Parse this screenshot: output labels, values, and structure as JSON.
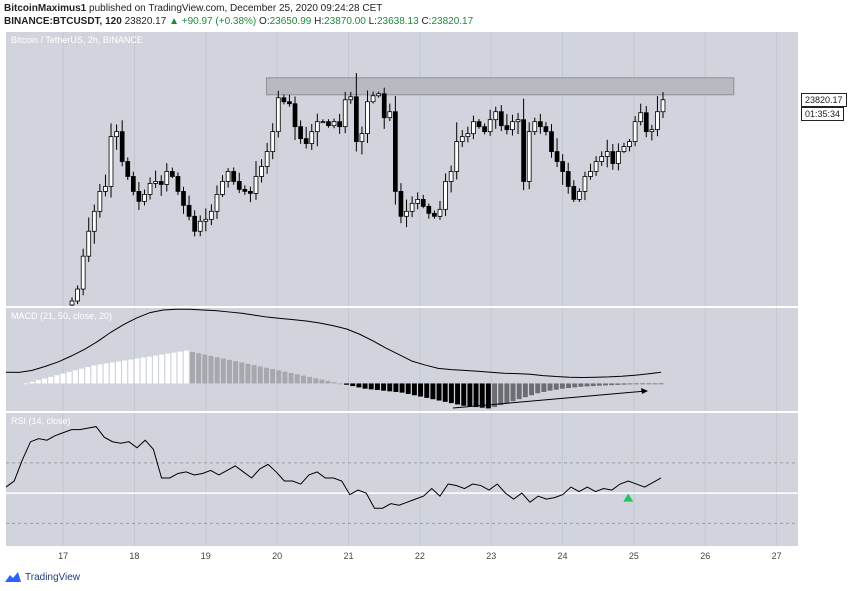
{
  "header": {
    "author": "BitcoinMaximus1",
    "published": "published on TradingView.com, December 25, 2020 09:24:28 CET",
    "symbol": "BINANCE:BTCUSDT, 120",
    "last": "23820.17",
    "change": "▲ +90.97 (+0.38%)",
    "o_label": "O:",
    "o_val": "23650.99",
    "h_label": "H:",
    "h_val": "23870.00",
    "l_label": "L:",
    "l_val": "23638.13",
    "c_label": "C:",
    "c_val": "23820.17"
  },
  "price_pane": {
    "label": "Bitcoin / TetherUS, 2h, BINANCE",
    "currency": "USDT",
    "price_tag": "23820.17",
    "timer_tag": "01:35:34"
  },
  "macd_pane": {
    "label": "MACD (21, 50, close, 20)"
  },
  "rsi_pane": {
    "label": "RSI (14, close)"
  },
  "branding": {
    "name": "TradingView"
  },
  "colors": {
    "pane_bg": "#d1d4dc",
    "candle_up": "#ffffff",
    "candle_down": "#000000",
    "rsi_signal": "#22c55e"
  },
  "chart_data": [
    {
      "type": "candlestick",
      "title": "Bitcoin / TetherUS, 2h, BINANCE",
      "x_ticks": [
        "17",
        "18",
        "19",
        "20",
        "21",
        "22",
        "23",
        "24",
        "25",
        "26",
        "27"
      ],
      "ylim": [
        21750,
        24500
      ],
      "y_ticks": [
        22000,
        22250,
        22500,
        22750,
        23000,
        23250,
        23500,
        23750,
        24000,
        24250
      ],
      "x_range": [
        16.2,
        27.3
      ],
      "resistance_zone": {
        "x": [
          19.85,
          26.4
        ],
        "y": [
          23870,
          24040
        ]
      },
      "close": [
        21800,
        21920,
        22250,
        22500,
        22700,
        22900,
        22950,
        23450,
        23500,
        23200,
        23050,
        22900,
        22800,
        22870,
        22980,
        23000,
        22970,
        23100,
        23050,
        22900,
        22760,
        22650,
        22500,
        22600,
        22620,
        22700,
        22870,
        23000,
        23100,
        23000,
        22920,
        22900,
        22880,
        23050,
        23150,
        23300,
        23500,
        23840,
        23800,
        23780,
        23550,
        23430,
        23380,
        23500,
        23600,
        23600,
        23560,
        23600,
        23550,
        23820,
        23850,
        23400,
        23480,
        23800,
        23860,
        23880,
        23640,
        23700,
        22900,
        22650,
        22700,
        22780,
        22820,
        22750,
        22680,
        22650,
        22720,
        23000,
        23100,
        23400,
        23450,
        23480,
        23600,
        23550,
        23500,
        23620,
        23700,
        23560,
        23520,
        23600,
        23620,
        23000,
        23500,
        23600,
        23550,
        23500,
        23300,
        23200,
        23100,
        22950,
        22820,
        22900,
        23050,
        23100,
        23200,
        23250,
        23300,
        23180,
        23300,
        23350,
        23400,
        23600,
        23690,
        23500,
        23520,
        23700,
        23820
      ]
    },
    {
      "type": "bar",
      "title": "MACD (21, 50, close, 20)",
      "ylim": [
        -420,
        1150
      ],
      "y_ticks": [
        800,
        400,
        0,
        -400
      ],
      "histogram": [
        0,
        25,
        50,
        75,
        100,
        125,
        150,
        175,
        200,
        225,
        250,
        275,
        290,
        305,
        320,
        335,
        350,
        365,
        380,
        395,
        410,
        425,
        440,
        455,
        470,
        485,
        500,
        480,
        460,
        440,
        420,
        400,
        380,
        360,
        340,
        320,
        300,
        280,
        260,
        240,
        220,
        200,
        180,
        160,
        140,
        120,
        100,
        80,
        60,
        40,
        20,
        0,
        -20,
        -40,
        -60,
        -80,
        -90,
        -100,
        -110,
        -120,
        -130,
        -140,
        -160,
        -180,
        -200,
        -220,
        -240,
        -260,
        -280,
        -300,
        -320,
        -340,
        -350,
        -360,
        -370,
        -380,
        -360,
        -330,
        -300,
        -270,
        -240,
        -210,
        -180,
        -150,
        -130,
        -110,
        -95,
        -80,
        -70,
        -60,
        -50,
        -45,
        -40,
        -35,
        -30,
        -26,
        -22,
        -18,
        -14,
        -10,
        -7,
        -5,
        -3,
        -2
      ],
      "line": [
        170,
        168,
        200,
        260,
        330,
        420,
        520,
        640,
        780,
        900,
        1000,
        1080,
        1120,
        1130,
        1130,
        1120,
        1110,
        1090,
        1070,
        1040,
        1010,
        990,
        970,
        950,
        920,
        880,
        830,
        750,
        650,
        540,
        440,
        340,
        280,
        230,
        210,
        200,
        185,
        170,
        155,
        150,
        140,
        120,
        105,
        95,
        90,
        95,
        100,
        110,
        125,
        145,
        170
      ]
    },
    {
      "type": "line",
      "title": "RSI (14, close)",
      "ylim": [
        15,
        103
      ],
      "y_ticks": [
        100,
        80,
        60,
        40
      ],
      "levels": [
        70,
        50,
        30
      ],
      "values": [
        54,
        58,
        72,
        84,
        86,
        85,
        88,
        90,
        92,
        92,
        93,
        94,
        87,
        84,
        83,
        84,
        80,
        85,
        79,
        60,
        60,
        63,
        64,
        62,
        63,
        65,
        62,
        65,
        68,
        64,
        60,
        66,
        69,
        64,
        58,
        58,
        56,
        62,
        64,
        60,
        60,
        58,
        49,
        52,
        50,
        40,
        40,
        43,
        42,
        44,
        46,
        48,
        53,
        48,
        56,
        55,
        53,
        56,
        55,
        52,
        56,
        50,
        46,
        50,
        44,
        48,
        46,
        47,
        49,
        54,
        51,
        54,
        51,
        53,
        52,
        56,
        58,
        56,
        54,
        57,
        60
      ],
      "signal_marker": {
        "x_index": 76,
        "value": 47
      }
    }
  ]
}
